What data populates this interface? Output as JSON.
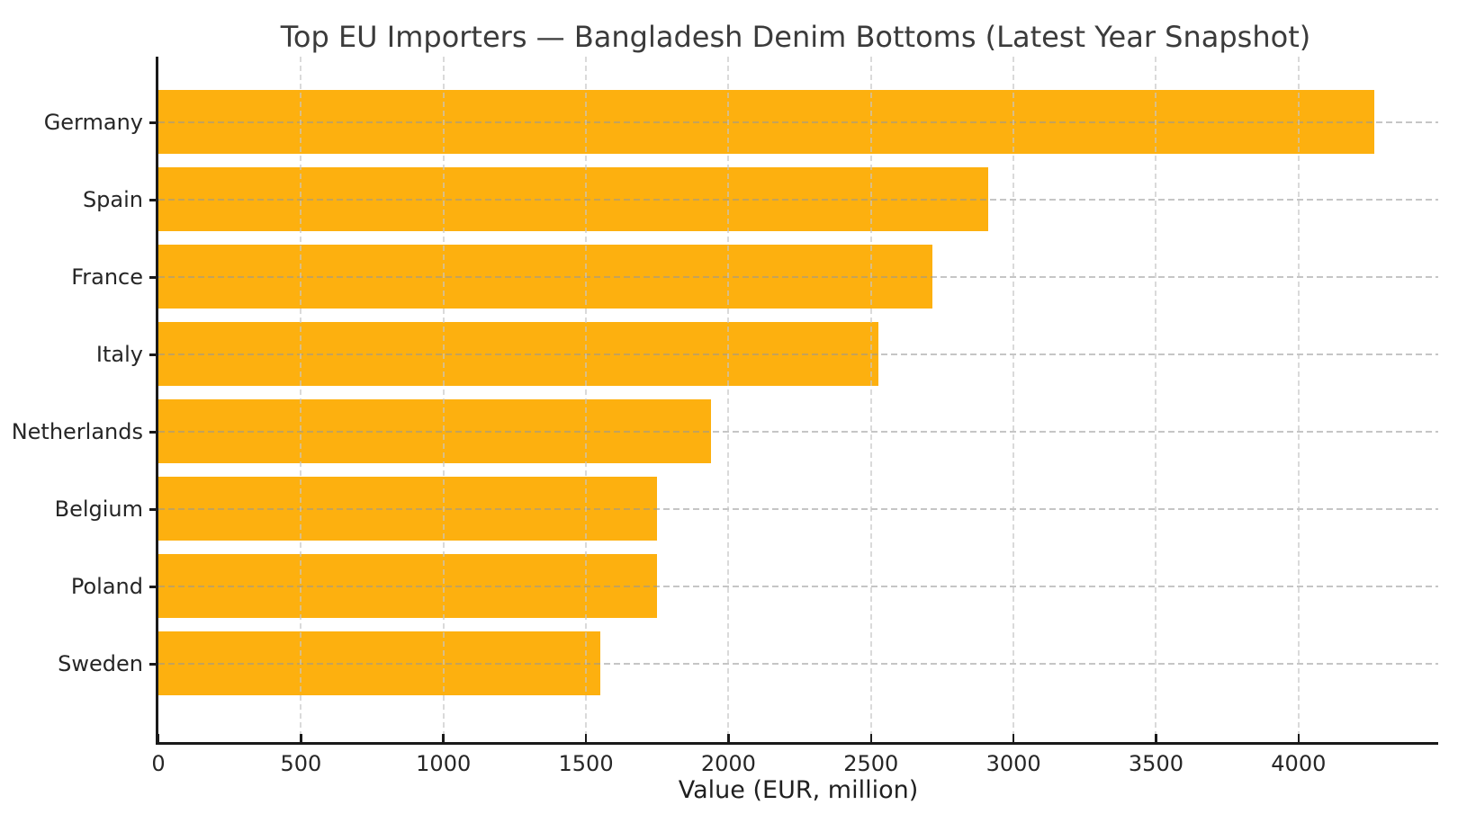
{
  "chart_data": {
    "type": "bar",
    "orientation": "horizontal",
    "title": "Top EU Importers — Bangladesh Denim Bottoms (Latest Year Snapshot)",
    "xlabel": "Value (EUR, million)",
    "categories": [
      "Germany",
      "Spain",
      "France",
      "Italy",
      "Netherlands",
      "Belgium",
      "Poland",
      "Sweden"
    ],
    "values": [
      4265,
      2910,
      2715,
      2525,
      1940,
      1750,
      1750,
      1550
    ],
    "xlim": [
      0,
      4490
    ],
    "xticks": [
      0,
      500,
      1000,
      1500,
      2000,
      2500,
      3000,
      3500,
      4000
    ],
    "bar_color": "#FDB00F",
    "grid": true,
    "grid_style": "dashed",
    "legend": "none"
  }
}
